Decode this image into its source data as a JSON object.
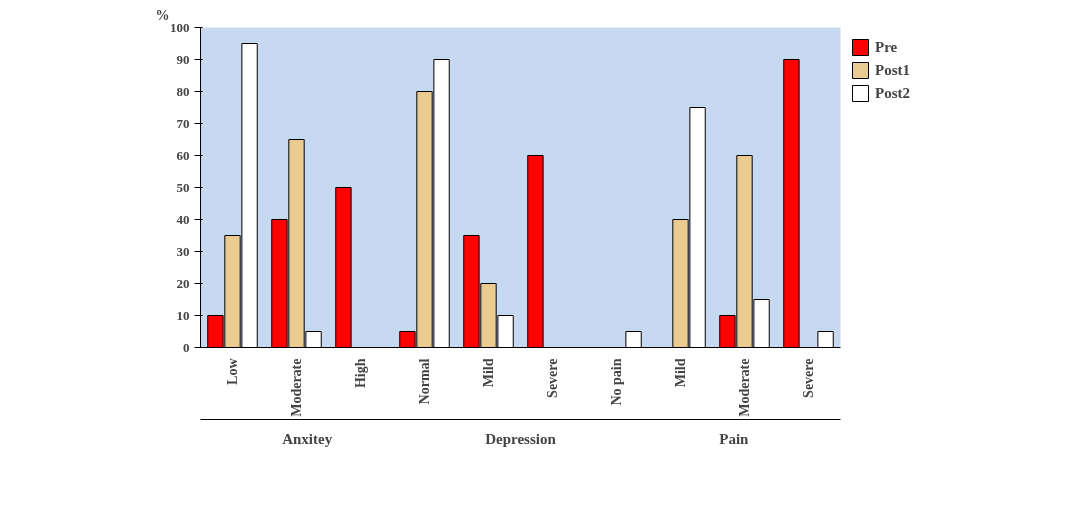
{
  "chart_data": {
    "type": "bar",
    "categories": [
      "Low",
      "Moderate",
      "High",
      "Normal",
      "Mild",
      "Severe",
      "No pain",
      "Mild",
      "Moderate",
      "Severe"
    ],
    "series": [
      {
        "name": "Pre",
        "color": "#ff0000",
        "values": [
          10,
          40,
          50,
          5,
          35,
          60,
          0,
          0,
          10,
          90
        ]
      },
      {
        "name": "Post1",
        "color": "#eacb92",
        "values": [
          35,
          65,
          0,
          80,
          20,
          0,
          0,
          40,
          60,
          0
        ]
      },
      {
        "name": "Post2",
        "color": "#ffffff",
        "values": [
          95,
          5,
          0,
          90,
          10,
          0,
          5,
          75,
          15,
          5
        ]
      }
    ],
    "ylim": [
      0,
      100
    ],
    "yticks": [
      0,
      10,
      20,
      30,
      40,
      50,
      60,
      70,
      80,
      90,
      100
    ],
    "grid": false,
    "legend": "top right",
    "ylabel": "%",
    "annotations": [
      "Anxitey",
      "Depression",
      "Pain"
    ]
  }
}
